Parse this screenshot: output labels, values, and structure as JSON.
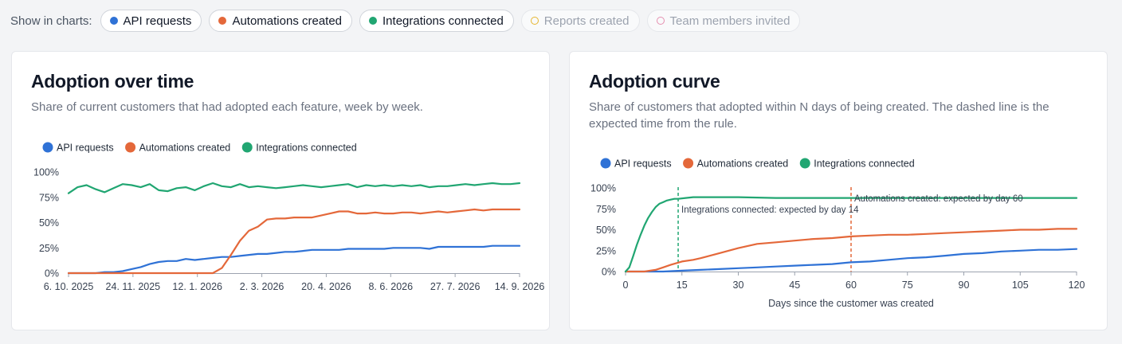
{
  "filters": {
    "label": "Show in charts:",
    "items": [
      {
        "key": "api",
        "label": "API requests",
        "color": "#2f72d6",
        "active": true
      },
      {
        "key": "auto",
        "label": "Automations created",
        "color": "#e4683a",
        "active": true
      },
      {
        "key": "integ",
        "label": "Integrations connected",
        "color": "#21a672",
        "active": true
      },
      {
        "key": "reports",
        "label": "Reports created",
        "color": "#e6b52e",
        "active": false
      },
      {
        "key": "team",
        "label": "Team members invited",
        "color": "#e58fb0",
        "active": false
      }
    ]
  },
  "chart_data": [
    {
      "type": "line",
      "title": "Adoption over time",
      "subtitle": "Share of current customers that had adopted each feature, week by week.",
      "xlabel": "",
      "ylabel": "",
      "x_ticks": [
        "6. 10. 2025",
        "24. 11. 2025",
        "12. 1. 2026",
        "2. 3. 2026",
        "20. 4. 2026",
        "8. 6. 2026",
        "27. 7. 2026",
        "14. 9. 2026"
      ],
      "y_ticks": [
        "100%",
        "75%",
        "50%",
        "25%",
        "0%"
      ],
      "ylim": [
        0,
        100
      ],
      "x_unit": "weeks since 6. 10. 2025",
      "xlim": [
        0,
        50
      ],
      "grid": false,
      "legend_position": "top-left",
      "series": [
        {
          "name": "API requests",
          "color": "#2f72d6",
          "x": [
            0,
            1,
            2,
            3,
            4,
            5,
            6,
            7,
            8,
            9,
            10,
            11,
            12,
            13,
            14,
            15,
            16,
            17,
            18,
            19,
            20,
            21,
            22,
            23,
            24,
            25,
            26,
            27,
            28,
            29,
            30,
            31,
            32,
            33,
            34,
            35,
            36,
            37,
            38,
            39,
            40,
            41,
            42,
            43,
            44,
            45,
            46,
            47,
            48,
            49,
            50
          ],
          "y": [
            0,
            0,
            0,
            0,
            1,
            1,
            2,
            4,
            6,
            9,
            11,
            12,
            12,
            14,
            13,
            14,
            15,
            16,
            16,
            17,
            18,
            19,
            19,
            20,
            21,
            21,
            22,
            23,
            23,
            23,
            23,
            24,
            24,
            24,
            24,
            24,
            25,
            25,
            25,
            25,
            24,
            26,
            26,
            26,
            26,
            26,
            26,
            27,
            27,
            27,
            27
          ]
        },
        {
          "name": "Automations created",
          "color": "#e4683a",
          "x": [
            0,
            1,
            2,
            3,
            4,
            5,
            6,
            7,
            8,
            9,
            10,
            11,
            12,
            13,
            14,
            15,
            16,
            17,
            18,
            19,
            20,
            21,
            22,
            23,
            24,
            25,
            26,
            27,
            28,
            29,
            30,
            31,
            32,
            33,
            34,
            35,
            36,
            37,
            38,
            39,
            40,
            41,
            42,
            43,
            44,
            45,
            46,
            47,
            48,
            49,
            50
          ],
          "y": [
            0,
            0,
            0,
            0,
            0,
            0,
            0,
            0,
            0,
            0,
            0,
            0,
            0,
            0,
            0,
            0,
            0,
            5,
            18,
            32,
            42,
            46,
            53,
            54,
            54,
            55,
            55,
            55,
            57,
            59,
            61,
            61,
            59,
            59,
            60,
            59,
            59,
            60,
            60,
            59,
            60,
            61,
            60,
            61,
            62,
            63,
            62,
            63,
            63,
            63,
            63
          ]
        },
        {
          "name": "Integrations connected",
          "color": "#21a672",
          "x": [
            0,
            1,
            2,
            3,
            4,
            5,
            6,
            7,
            8,
            9,
            10,
            11,
            12,
            13,
            14,
            15,
            16,
            17,
            18,
            19,
            20,
            21,
            22,
            23,
            24,
            25,
            26,
            27,
            28,
            29,
            30,
            31,
            32,
            33,
            34,
            35,
            36,
            37,
            38,
            39,
            40,
            41,
            42,
            43,
            44,
            45,
            46,
            47,
            48,
            49,
            50
          ],
          "y": [
            79,
            85,
            87,
            83,
            80,
            84,
            88,
            87,
            85,
            88,
            82,
            81,
            84,
            85,
            82,
            86,
            89,
            86,
            85,
            88,
            85,
            86,
            85,
            84,
            85,
            86,
            87,
            86,
            85,
            86,
            87,
            88,
            85,
            87,
            86,
            87,
            86,
            87,
            86,
            87,
            85,
            86,
            86,
            87,
            88,
            87,
            88,
            89,
            88,
            88,
            89
          ]
        }
      ]
    },
    {
      "type": "line",
      "title": "Adoption curve",
      "subtitle": "Share of customers that adopted within N days of being created. The dashed line is the expected time from the rule.",
      "xlabel": "Days since the customer was created",
      "ylabel": "",
      "x_ticks": [
        "0",
        "15",
        "30",
        "45",
        "60",
        "75",
        "90",
        "105",
        "120"
      ],
      "y_ticks": [
        "100%",
        "75%",
        "50%",
        "25%",
        "0%"
      ],
      "xlim": [
        0,
        120
      ],
      "ylim": [
        0,
        100
      ],
      "grid": false,
      "legend_position": "top-left",
      "series": [
        {
          "name": "API requests",
          "color": "#2f72d6",
          "x": [
            0,
            5,
            10,
            15,
            20,
            25,
            30,
            35,
            40,
            45,
            50,
            55,
            60,
            65,
            70,
            75,
            80,
            85,
            90,
            95,
            100,
            105,
            110,
            115,
            120
          ],
          "y": [
            0,
            0,
            0,
            1,
            2,
            3,
            4,
            5,
            6,
            7,
            8,
            9,
            11,
            12,
            14,
            16,
            17,
            19,
            21,
            22,
            24,
            25,
            26,
            26,
            27
          ]
        },
        {
          "name": "Automations created",
          "color": "#e4683a",
          "x": [
            0,
            5,
            8,
            10,
            12,
            15,
            18,
            20,
            25,
            30,
            35,
            40,
            45,
            50,
            55,
            60,
            65,
            70,
            75,
            80,
            85,
            90,
            95,
            100,
            105,
            110,
            115,
            120
          ],
          "y": [
            0,
            0,
            2,
            5,
            8,
            12,
            14,
            16,
            22,
            28,
            33,
            35,
            37,
            39,
            40,
            42,
            43,
            44,
            44,
            45,
            46,
            47,
            48,
            49,
            50,
            50,
            51,
            51
          ]
        },
        {
          "name": "Integrations connected",
          "color": "#21a672",
          "x": [
            0,
            1,
            2,
            3,
            4,
            5,
            6,
            7,
            8,
            9,
            10,
            11,
            12,
            13,
            14,
            16,
            18,
            20,
            25,
            30,
            40,
            50,
            60,
            70,
            80,
            90,
            100,
            110,
            120
          ],
          "y": [
            0,
            5,
            18,
            32,
            44,
            55,
            64,
            71,
            77,
            81,
            83,
            85,
            86,
            87,
            87,
            88,
            89,
            89,
            89,
            89,
            88,
            88,
            88,
            88,
            88,
            88,
            88,
            88,
            88
          ]
        }
      ],
      "annotations": [
        {
          "x": 14,
          "color": "#21a672",
          "label": "Integrations connected: expected by day 14"
        },
        {
          "x": 60,
          "color": "#e4683a",
          "label": "Automations created: expected by day 60"
        }
      ]
    }
  ]
}
